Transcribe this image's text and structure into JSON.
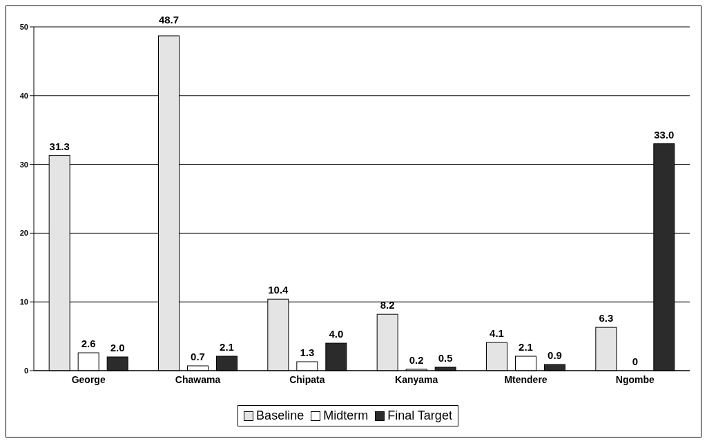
{
  "chart_data": {
    "type": "bar",
    "categories": [
      "George",
      "Chawama",
      "Chipata",
      "Kanyama",
      "Mtendere",
      "Ngombe"
    ],
    "series": [
      {
        "name": "Baseline",
        "color": "#e4e4e4",
        "values": [
          31.3,
          48.7,
          10.4,
          8.2,
          4.1,
          6.3
        ],
        "value_labels": [
          "31.3",
          "48.7",
          "10.4",
          "8.2",
          "4.1",
          "6.3"
        ]
      },
      {
        "name": "Midterm",
        "color": "#ffffff",
        "values": [
          2.6,
          0.7,
          1.3,
          0.2,
          2.1,
          0
        ],
        "value_labels": [
          "2.6",
          "0.7",
          "1.3",
          "0.2",
          "2.1",
          "0"
        ]
      },
      {
        "name": "Final Target",
        "color": "#2b2b2b",
        "values": [
          2.0,
          2.1,
          4.0,
          0.5,
          0.9,
          33.0
        ],
        "value_labels": [
          "2.0",
          "2.1",
          "4.0",
          "0.5",
          "0.9",
          "33.0"
        ]
      }
    ],
    "ylim": [
      0,
      50
    ],
    "yticks": [
      0,
      10,
      20,
      30,
      40,
      50
    ],
    "grid": "y",
    "legend": "bottom"
  }
}
